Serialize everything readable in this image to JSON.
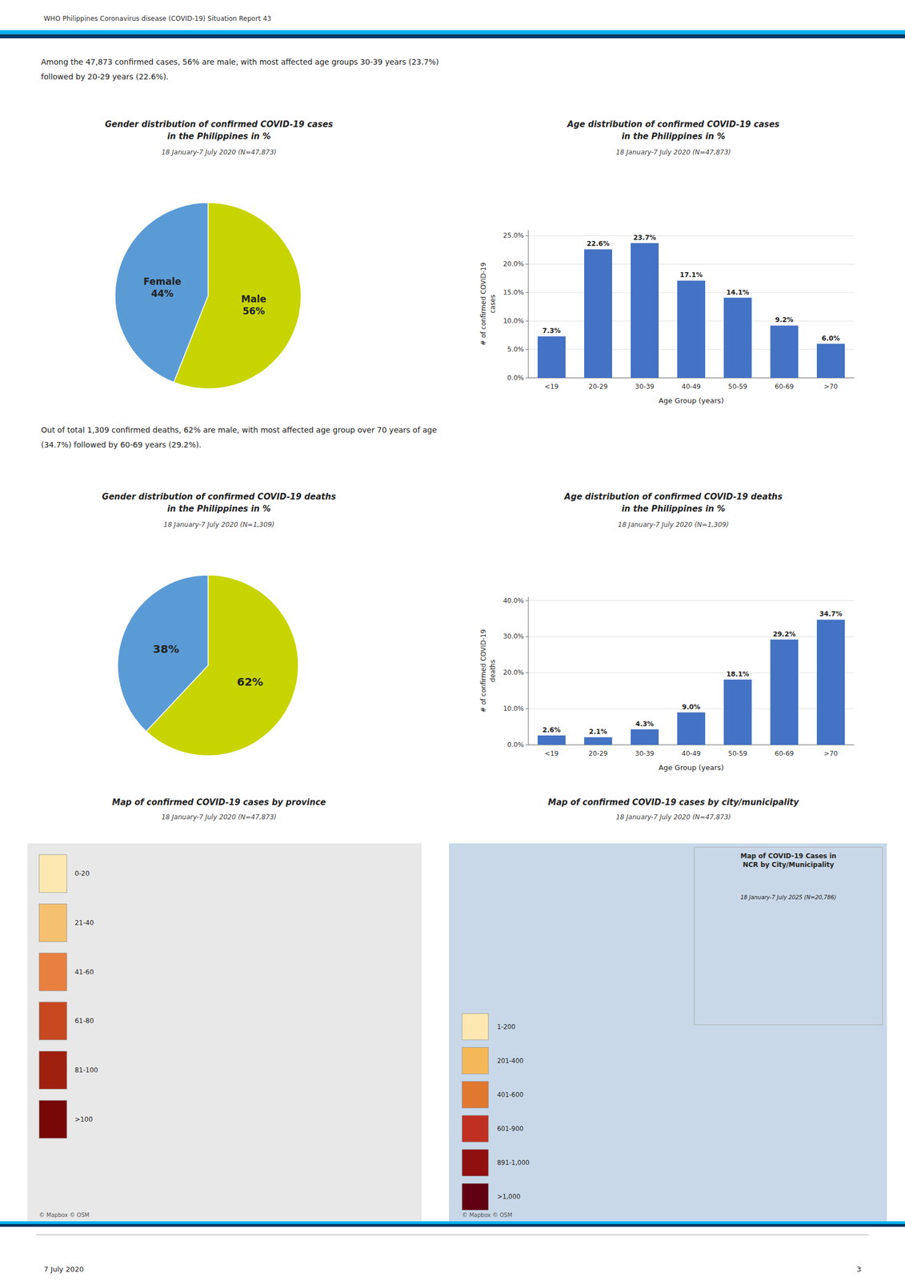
{
  "background": "#ffffff",
  "header": "WHO Philippines Coronavirus disease (COVID-19) Situation Report 43",
  "header_colors": [
    "#00b0f0",
    "#003865"
  ],
  "intro_cases": "Among the 47,873 confirmed cases, 56% are male, with most affected age groups 30-39 years (23.7%)\nfollowed by 20-29 years (22.6%).",
  "intro_deaths": "Out of total 1,309 confirmed deaths, 62% are male, with most affected age group over 70 years of age\n(34.7%) followed by 60-69 years (29.2%).",
  "chart_data": [
    {
      "type": "pie",
      "title": "Gender distribution of confirmed COVID-19 cases\nin the Philippines in %",
      "subtitle": "18 January-7 July 2020 (N=47,873)",
      "categories": [
        "Male",
        "Female"
      ],
      "values": [
        56,
        44
      ],
      "value_labels": [
        "56%",
        "44%"
      ],
      "colors": [
        "#c8d400",
        "#5b9bd5"
      ],
      "data_labels": true
    },
    {
      "type": "bar",
      "title": "Age distribution of confirmed COVID-19 cases\nin the Philippines in %",
      "subtitle": "18 January-7 July 2020 (N=47,873)",
      "categories": [
        "<19",
        "20-29",
        "30-39",
        "40-49",
        "50-59",
        "60-69",
        ">70"
      ],
      "values": [
        7.3,
        22.6,
        23.7,
        17.1,
        14.1,
        9.2,
        6.0
      ],
      "value_labels": [
        "7.3%",
        "22.6%",
        "23.7%",
        "17.1%",
        "14.1%",
        "9.2%",
        "6.0%"
      ],
      "color": "#4472c4",
      "ylabel": "# of confirmed COVID-19\ncases",
      "xlabel": "Age Group (years)",
      "ylim": [
        0,
        26
      ],
      "yticks": [
        {
          "value": 0,
          "label": "0.0%"
        },
        {
          "value": 5,
          "label": "5.0%"
        },
        {
          "value": 10,
          "label": "10.0%"
        },
        {
          "value": 15,
          "label": "15.0%"
        },
        {
          "value": 20,
          "label": "20.0%"
        },
        {
          "value": 25,
          "label": "25.0%"
        }
      ],
      "grid": true,
      "data_labels": true
    },
    {
      "type": "pie",
      "title": "Gender distribution of confirmed COVID-19 deaths\nin the Philippines in %",
      "subtitle": "18 January-7 July 2020 (N=1,309)",
      "values": [
        62,
        38
      ],
      "value_labels": [
        "62%",
        "38%"
      ],
      "colors": [
        "#c8d400",
        "#5b9bd5"
      ],
      "data_labels": true
    },
    {
      "type": "bar",
      "title": "Age distribution of confirmed COVID-19 deaths\nin the Philippines in %",
      "subtitle": "18 January-7 July 2020 (N=1,309)",
      "categories": [
        "<19",
        "20-29",
        "30-39",
        "40-49",
        "50-59",
        "60-69",
        ">70"
      ],
      "values": [
        2.6,
        2.1,
        4.3,
        9.0,
        18.1,
        29.2,
        34.7
      ],
      "value_labels": [
        "2.6%",
        "2.1%",
        "4.3%",
        "9.0%",
        "18.1%",
        "29.2%",
        "34.7%"
      ],
      "color": "#4472c4",
      "ylabel": "# of confirmed COVID-19\ndeaths",
      "xlabel": "Age Group (years)",
      "ylim": [
        0,
        41
      ],
      "yticks": [
        {
          "value": 0,
          "label": "0.0%"
        },
        {
          "value": 10,
          "label": "10.0%"
        },
        {
          "value": 20,
          "label": "20.0%"
        },
        {
          "value": 30,
          "label": "30.0%"
        },
        {
          "value": 40,
          "label": "40.0%"
        }
      ],
      "grid": true,
      "data_labels": true
    }
  ],
  "maps": [
    {
      "title": "Map of confirmed COVID-19 cases by province",
      "subtitle": "18 January-7 July 2020 (N=47,873)",
      "background": "#e8e8e8",
      "legend_labels": [
        "0-20",
        "21-40",
        "41-60",
        "61-80",
        "81-100",
        ">100"
      ],
      "legend_colors": [
        "#fce8b0",
        "#f5c070",
        "#e88040",
        "#c84820",
        "#a02010",
        "#780808"
      ],
      "attribution": "© Mapbox © OSM"
    },
    {
      "title": "Map of confirmed COVID-19 cases by city/municipality",
      "subtitle": "18 January-7 July 2020 (N=47,873)",
      "background": "#c8d8e8",
      "legend_labels": [
        "1-200",
        "201-400",
        "401-600",
        "601-900",
        "891-1,000",
        ">1,000"
      ],
      "legend_colors": [
        "#fce8b0",
        "#f5b858",
        "#e07830",
        "#c03020",
        "#901010",
        "#600010"
      ],
      "attribution": "© Mapbox © OSM",
      "inset": {
        "title": "Map of COVID-19 Cases in\nNCR by City/Municipality",
        "subtitle": "18 January-7 July 2025 (N=20,786)",
        "background": "#c8d8e8"
      }
    }
  ],
  "footer_date": "7 July 2020",
  "footer_page": "3"
}
